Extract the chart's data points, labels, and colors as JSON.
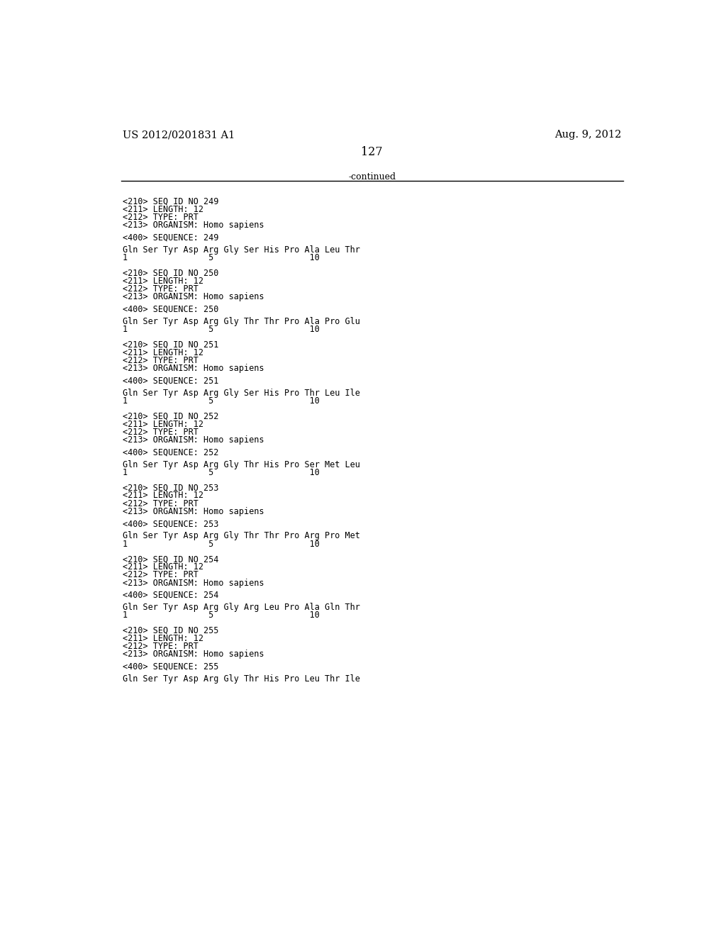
{
  "header_left": "US 2012/0201831 A1",
  "header_right": "Aug. 9, 2012",
  "page_number": "127",
  "continued_text": "-continued",
  "background_color": "#ffffff",
  "text_color": "#000000",
  "font_size_header": 10.5,
  "font_size_body": 8.5,
  "sections": [
    {
      "seq_id": "249",
      "length": "12",
      "type": "PRT",
      "organism": "Homo sapiens",
      "sequence_num": "249",
      "sequence_line": "Gln Ser Tyr Asp Arg Gly Ser His Pro Ala Leu Thr",
      "numbering": "1                5                   10"
    },
    {
      "seq_id": "250",
      "length": "12",
      "type": "PRT",
      "organism": "Homo sapiens",
      "sequence_num": "250",
      "sequence_line": "Gln Ser Tyr Asp Arg Gly Thr Thr Pro Ala Pro Glu",
      "numbering": "1                5                   10"
    },
    {
      "seq_id": "251",
      "length": "12",
      "type": "PRT",
      "organism": "Homo sapiens",
      "sequence_num": "251",
      "sequence_line": "Gln Ser Tyr Asp Arg Gly Ser His Pro Thr Leu Ile",
      "numbering": "1                5                   10"
    },
    {
      "seq_id": "252",
      "length": "12",
      "type": "PRT",
      "organism": "Homo sapiens",
      "sequence_num": "252",
      "sequence_line": "Gln Ser Tyr Asp Arg Gly Thr His Pro Ser Met Leu",
      "numbering": "1                5                   10"
    },
    {
      "seq_id": "253",
      "length": "12",
      "type": "PRT",
      "organism": "Homo sapiens",
      "sequence_num": "253",
      "sequence_line": "Gln Ser Tyr Asp Arg Gly Thr Thr Pro Arg Pro Met",
      "numbering": "1                5                   10"
    },
    {
      "seq_id": "254",
      "length": "12",
      "type": "PRT",
      "organism": "Homo sapiens",
      "sequence_num": "254",
      "sequence_line": "Gln Ser Tyr Asp Arg Gly Arg Leu Pro Ala Gln Thr",
      "numbering": "1                5                   10"
    },
    {
      "seq_id": "255",
      "length": "12",
      "type": "PRT",
      "organism": "Homo sapiens",
      "sequence_num": "255",
      "sequence_line": "Gln Ser Tyr Asp Arg Gly Thr His Pro Leu Thr Ile",
      "numbering_partial": true
    }
  ]
}
